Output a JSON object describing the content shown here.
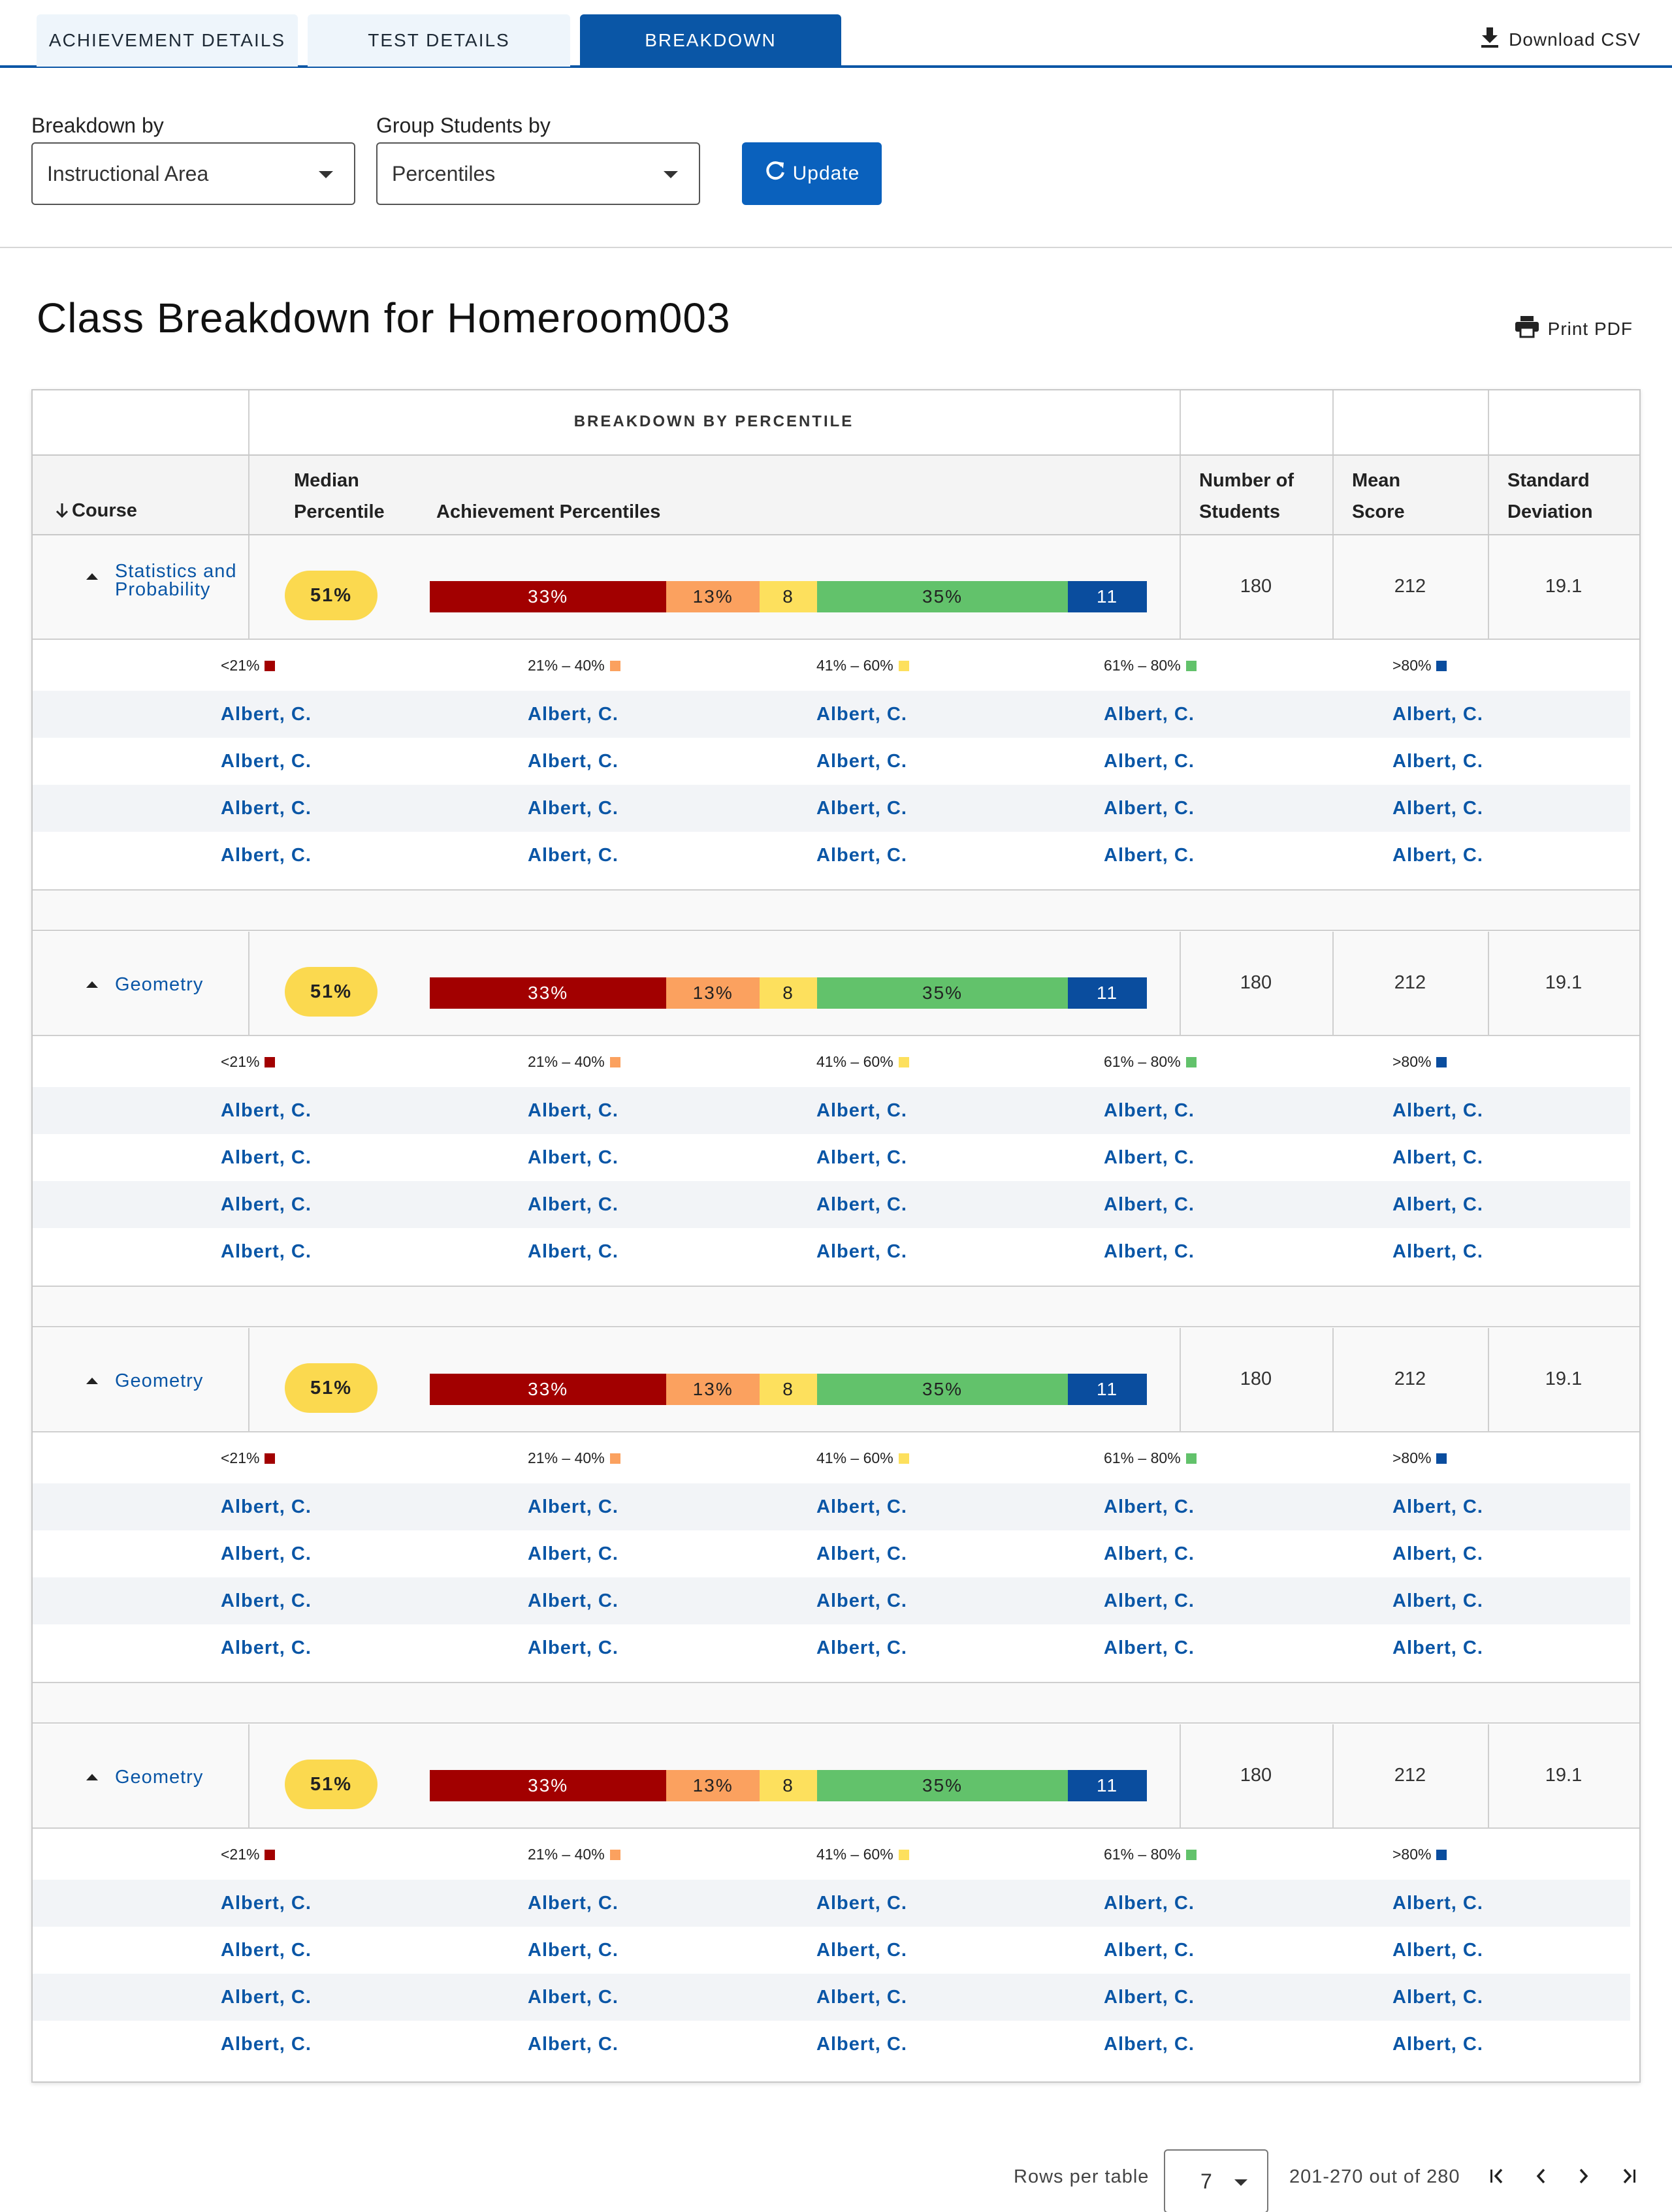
{
  "tabs": [
    {
      "label": "ACHIEVEMENT DETAILS",
      "active": false
    },
    {
      "label": "TEST DETAILS",
      "active": false
    },
    {
      "label": "BREAKDOWN",
      "active": true
    }
  ],
  "download_label": "Download CSV",
  "controls": {
    "breakdown_by_label": "Breakdown by",
    "breakdown_by_value": "Instructional Area",
    "group_by_label": "Group Students by",
    "group_by_value": "Percentiles",
    "update_label": "Update"
  },
  "title": "Class Breakdown for Homeroom003",
  "print_label": "Print PDF",
  "table": {
    "super_header": "BREAKDOWN BY PERCENTILE",
    "headers": {
      "course": "Course",
      "median_1": "Median",
      "median_2": "Percentile",
      "achievement": "Achievement Percentiles",
      "students_1": "Number of",
      "students_2": "Students",
      "mean_1": "Mean",
      "mean_2": "Score",
      "sd_1": "Standard",
      "sd_2": "Deviation"
    },
    "legend": [
      "<21%",
      "21% – 40%",
      "41% – 60%",
      "61% – 80%",
      ">80%"
    ],
    "segment_colors": [
      "#a20000",
      "#fba15f",
      "#fde05d",
      "#62c26b",
      "#0a4d9e"
    ],
    "groups": [
      {
        "course_1": "Statistics and",
        "course_2": "Probability",
        "median": "51%",
        "segments": [
          "33%",
          "13%",
          "8",
          "35%",
          "11"
        ],
        "segment_shares": [
          33,
          13,
          8,
          35,
          11
        ],
        "students": "180",
        "mean": "212",
        "sd": "19.1",
        "rows": [
          [
            "Albert, C.",
            "Albert, C.",
            "Albert, C.",
            "Albert, C.",
            "Albert, C."
          ],
          [
            "Albert, C.",
            "Albert, C.",
            "Albert, C.",
            "Albert, C.",
            "Albert, C."
          ],
          [
            "Albert, C.",
            "Albert, C.",
            "Albert, C.",
            "Albert, C.",
            "Albert, C."
          ],
          [
            "Albert, C.",
            "Albert, C.",
            "Albert, C.",
            "Albert, C.",
            "Albert, C."
          ]
        ]
      },
      {
        "course_1": "Geometry",
        "course_2": "",
        "median": "51%",
        "segments": [
          "33%",
          "13%",
          "8",
          "35%",
          "11"
        ],
        "segment_shares": [
          33,
          13,
          8,
          35,
          11
        ],
        "students": "180",
        "mean": "212",
        "sd": "19.1",
        "rows": [
          [
            "Albert, C.",
            "Albert, C.",
            "Albert, C.",
            "Albert, C.",
            "Albert, C."
          ],
          [
            "Albert, C.",
            "Albert, C.",
            "Albert, C.",
            "Albert, C.",
            "Albert, C."
          ],
          [
            "Albert, C.",
            "Albert, C.",
            "Albert, C.",
            "Albert, C.",
            "Albert, C."
          ],
          [
            "Albert, C.",
            "Albert, C.",
            "Albert, C.",
            "Albert, C.",
            "Albert, C."
          ]
        ]
      },
      {
        "course_1": "Geometry",
        "course_2": "",
        "median": "51%",
        "segments": [
          "33%",
          "13%",
          "8",
          "35%",
          "11"
        ],
        "segment_shares": [
          33,
          13,
          8,
          35,
          11
        ],
        "students": "180",
        "mean": "212",
        "sd": "19.1",
        "rows": [
          [
            "Albert, C.",
            "Albert, C.",
            "Albert, C.",
            "Albert, C.",
            "Albert, C."
          ],
          [
            "Albert, C.",
            "Albert, C.",
            "Albert, C.",
            "Albert, C.",
            "Albert, C."
          ],
          [
            "Albert, C.",
            "Albert, C.",
            "Albert, C.",
            "Albert, C.",
            "Albert, C."
          ],
          [
            "Albert, C.",
            "Albert, C.",
            "Albert, C.",
            "Albert, C.",
            "Albert, C."
          ]
        ]
      },
      {
        "course_1": "Geometry",
        "course_2": "",
        "median": "51%",
        "segments": [
          "33%",
          "13%",
          "8",
          "35%",
          "11"
        ],
        "segment_shares": [
          33,
          13,
          8,
          35,
          11
        ],
        "students": "180",
        "mean": "212",
        "sd": "19.1",
        "rows": [
          [
            "Albert, C.",
            "Albert, C.",
            "Albert, C.",
            "Albert, C.",
            "Albert, C."
          ],
          [
            "Albert, C.",
            "Albert, C.",
            "Albert, C.",
            "Albert, C.",
            "Albert, C."
          ],
          [
            "Albert, C.",
            "Albert, C.",
            "Albert, C.",
            "Albert, C.",
            "Albert, C."
          ],
          [
            "Albert, C.",
            "Albert, C.",
            "Albert, C.",
            "Albert, C.",
            "Albert, C."
          ]
        ]
      }
    ]
  },
  "pagination": {
    "rows_label": "Rows per table",
    "rows_value": "7",
    "range_text": "201-270 out of 280"
  }
}
